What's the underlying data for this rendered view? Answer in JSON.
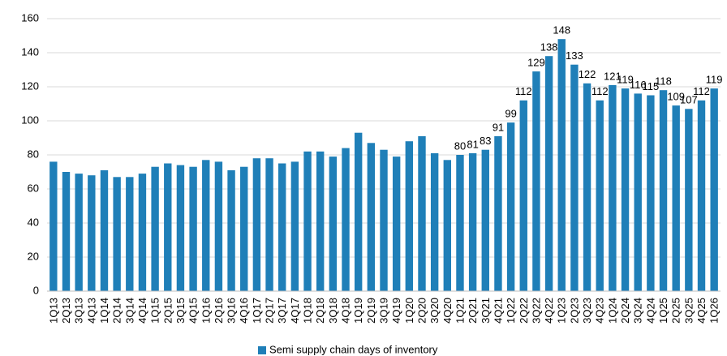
{
  "chart_data": {
    "type": "bar",
    "categories": [
      "1Q13",
      "2Q13",
      "3Q13",
      "4Q13",
      "1Q14",
      "2Q14",
      "3Q14",
      "4Q14",
      "1Q15",
      "2Q15",
      "3Q15",
      "4Q15",
      "1Q16",
      "2Q16",
      "3Q16",
      "4Q16",
      "1Q17",
      "2Q17",
      "3Q17",
      "4Q17",
      "1Q18",
      "2Q18",
      "3Q18",
      "4Q18",
      "1Q19",
      "2Q19",
      "3Q19",
      "4Q19",
      "1Q20",
      "2Q20",
      "3Q20",
      "4Q20",
      "1Q21",
      "2Q21",
      "3Q21",
      "4Q21",
      "1Q22",
      "2Q22",
      "3Q22",
      "4Q22",
      "1Q23",
      "2Q23",
      "3Q23",
      "4Q23",
      "1Q24",
      "2Q24",
      "3Q24",
      "4Q24",
      "1Q25",
      "2Q25",
      "3Q25",
      "4Q25",
      "1Q26"
    ],
    "series": [
      {
        "name": "Semi supply chain days of inventory",
        "color": "#1f7fb8",
        "values": [
          76,
          70,
          69,
          68,
          71,
          67,
          67,
          69,
          73,
          75,
          74,
          73,
          77,
          76,
          71,
          73,
          78,
          78,
          75,
          76,
          82,
          82,
          79,
          84,
          93,
          87,
          83,
          79,
          88,
          91,
          81,
          77,
          80,
          81,
          83,
          91,
          99,
          112,
          129,
          138,
          148,
          133,
          122,
          112,
          121,
          119,
          116,
          115,
          118,
          109,
          107,
          112,
          119
        ]
      }
    ],
    "data_labels_from": "1Q21",
    "ylim": [
      0,
      160
    ],
    "yticks": [
      0,
      20,
      40,
      60,
      80,
      100,
      120,
      140,
      160
    ],
    "grid": true,
    "legend": "bottom"
  }
}
